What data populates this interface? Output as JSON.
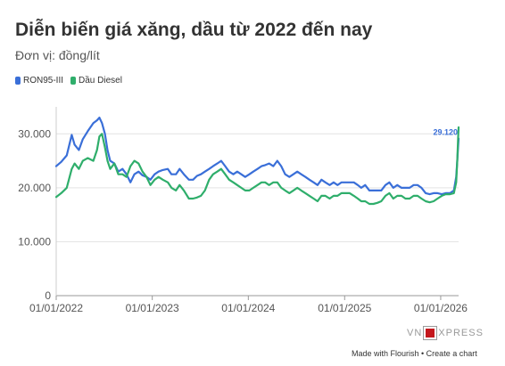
{
  "chart_data": {
    "type": "line",
    "title": "Diễn biến giá xăng, dầu từ 2022 đến nay",
    "subtitle": "Đơn vị: đồng/lít",
    "x_tick_labels": [
      "01/01/2022",
      "01/01/2023",
      "01/01/2024",
      "01/01/2025",
      "01/01/2026"
    ],
    "y_tick_labels": [
      "0",
      "10.000",
      "20.000",
      "30.000"
    ],
    "ylim": [
      0,
      35000
    ],
    "xlim": [
      "2022-01-01",
      "2026-03-10"
    ],
    "grid": "horizontal",
    "legend_position": "top-left",
    "annotation": "29.120",
    "series": [
      {
        "name": "RON95-III",
        "color": "#3a6fd8",
        "points": [
          [
            "2022-01-01",
            24000
          ],
          [
            "2022-01-20",
            24800
          ],
          [
            "2022-02-10",
            26000
          ],
          [
            "2022-03-01",
            29800
          ],
          [
            "2022-03-12",
            28000
          ],
          [
            "2022-03-28",
            27000
          ],
          [
            "2022-04-12",
            29000
          ],
          [
            "2022-05-01",
            30500
          ],
          [
            "2022-05-22",
            32000
          ],
          [
            "2022-06-05",
            32500
          ],
          [
            "2022-06-14",
            33000
          ],
          [
            "2022-06-24",
            32000
          ],
          [
            "2022-07-05",
            30000
          ],
          [
            "2022-07-15",
            27000
          ],
          [
            "2022-07-25",
            25000
          ],
          [
            "2022-08-10",
            24500
          ],
          [
            "2022-08-25",
            23000
          ],
          [
            "2022-09-10",
            23500
          ],
          [
            "2022-09-25",
            22500
          ],
          [
            "2022-10-10",
            21000
          ],
          [
            "2022-10-25",
            22500
          ],
          [
            "2022-11-10",
            23000
          ],
          [
            "2022-11-25",
            22300
          ],
          [
            "2022-12-10",
            22000
          ],
          [
            "2022-12-25",
            21500
          ],
          [
            "2023-01-10",
            22500
          ],
          [
            "2023-01-25",
            23000
          ],
          [
            "2023-02-10",
            23300
          ],
          [
            "2023-03-01",
            23500
          ],
          [
            "2023-03-15",
            22500
          ],
          [
            "2023-04-01",
            22500
          ],
          [
            "2023-04-15",
            23500
          ],
          [
            "2023-05-01",
            22500
          ],
          [
            "2023-05-20",
            21500
          ],
          [
            "2023-06-05",
            21500
          ],
          [
            "2023-06-20",
            22200
          ],
          [
            "2023-07-05",
            22500
          ],
          [
            "2023-07-20",
            23000
          ],
          [
            "2023-08-05",
            23500
          ],
          [
            "2023-08-20",
            24000
          ],
          [
            "2023-09-05",
            24500
          ],
          [
            "2023-09-20",
            25000
          ],
          [
            "2023-10-05",
            24000
          ],
          [
            "2023-10-20",
            23000
          ],
          [
            "2023-11-05",
            22500
          ],
          [
            "2023-11-20",
            23000
          ],
          [
            "2023-12-05",
            22500
          ],
          [
            "2023-12-20",
            22000
          ],
          [
            "2024-01-05",
            22500
          ],
          [
            "2024-01-20",
            23000
          ],
          [
            "2024-02-05",
            23500
          ],
          [
            "2024-02-20",
            24000
          ],
          [
            "2024-03-05",
            24200
          ],
          [
            "2024-03-20",
            24500
          ],
          [
            "2024-04-05",
            24000
          ],
          [
            "2024-04-20",
            25000
          ],
          [
            "2024-05-05",
            24000
          ],
          [
            "2024-05-20",
            22500
          ],
          [
            "2024-06-05",
            22000
          ],
          [
            "2024-06-20",
            22500
          ],
          [
            "2024-07-05",
            23000
          ],
          [
            "2024-07-20",
            22500
          ],
          [
            "2024-08-05",
            22000
          ],
          [
            "2024-08-20",
            21500
          ],
          [
            "2024-09-05",
            21000
          ],
          [
            "2024-09-20",
            20500
          ],
          [
            "2024-10-05",
            21500
          ],
          [
            "2024-10-20",
            21000
          ],
          [
            "2024-11-05",
            20500
          ],
          [
            "2024-11-20",
            21000
          ],
          [
            "2024-12-05",
            20500
          ],
          [
            "2024-12-20",
            21000
          ],
          [
            "2025-01-05",
            21000
          ],
          [
            "2025-01-20",
            21000
          ],
          [
            "2025-02-05",
            21000
          ],
          [
            "2025-02-20",
            20500
          ],
          [
            "2025-03-05",
            20000
          ],
          [
            "2025-03-20",
            20500
          ],
          [
            "2025-04-05",
            19500
          ],
          [
            "2025-04-20",
            19500
          ],
          [
            "2025-05-05",
            19500
          ],
          [
            "2025-05-20",
            19500
          ],
          [
            "2025-06-05",
            20500
          ],
          [
            "2025-06-20",
            21000
          ],
          [
            "2025-07-05",
            20000
          ],
          [
            "2025-07-20",
            20500
          ],
          [
            "2025-08-05",
            20000
          ],
          [
            "2025-08-20",
            20000
          ],
          [
            "2025-09-05",
            20000
          ],
          [
            "2025-09-20",
            20500
          ],
          [
            "2025-10-05",
            20500
          ],
          [
            "2025-10-20",
            20000
          ],
          [
            "2025-11-05",
            19000
          ],
          [
            "2025-11-20",
            18800
          ],
          [
            "2025-12-05",
            19000
          ],
          [
            "2025-12-20",
            19000
          ],
          [
            "2026-01-05",
            18800
          ],
          [
            "2026-01-20",
            19000
          ],
          [
            "2026-02-05",
            19000
          ],
          [
            "2026-02-20",
            19500
          ],
          [
            "2026-03-01",
            22000
          ],
          [
            "2026-03-05",
            25000
          ],
          [
            "2026-03-08",
            27500
          ],
          [
            "2026-03-10",
            29120
          ]
        ]
      },
      {
        "name": "Dầu Diesel",
        "color": "#2fae6b",
        "points": [
          [
            "2022-01-01",
            18300
          ],
          [
            "2022-01-20",
            19000
          ],
          [
            "2022-02-10",
            20000
          ],
          [
            "2022-03-01",
            23500
          ],
          [
            "2022-03-12",
            24500
          ],
          [
            "2022-03-28",
            23500
          ],
          [
            "2022-04-12",
            25000
          ],
          [
            "2022-05-01",
            25500
          ],
          [
            "2022-05-22",
            25000
          ],
          [
            "2022-06-05",
            27000
          ],
          [
            "2022-06-14",
            29500
          ],
          [
            "2022-06-24",
            30000
          ],
          [
            "2022-07-05",
            27500
          ],
          [
            "2022-07-15",
            25000
          ],
          [
            "2022-07-25",
            23500
          ],
          [
            "2022-08-10",
            24500
          ],
          [
            "2022-08-25",
            22500
          ],
          [
            "2022-09-10",
            22500
          ],
          [
            "2022-09-25",
            22000
          ],
          [
            "2022-10-10",
            24000
          ],
          [
            "2022-10-25",
            25000
          ],
          [
            "2022-11-10",
            24500
          ],
          [
            "2022-11-25",
            23000
          ],
          [
            "2022-12-10",
            22000
          ],
          [
            "2022-12-25",
            20500
          ],
          [
            "2023-01-10",
            21500
          ],
          [
            "2023-01-25",
            22000
          ],
          [
            "2023-02-10",
            21500
          ],
          [
            "2023-03-01",
            21000
          ],
          [
            "2023-03-15",
            20000
          ],
          [
            "2023-04-01",
            19500
          ],
          [
            "2023-04-15",
            20500
          ],
          [
            "2023-05-01",
            19500
          ],
          [
            "2023-05-20",
            18000
          ],
          [
            "2023-06-05",
            18000
          ],
          [
            "2023-06-20",
            18200
          ],
          [
            "2023-07-05",
            18500
          ],
          [
            "2023-07-20",
            19500
          ],
          [
            "2023-08-05",
            21500
          ],
          [
            "2023-08-20",
            22500
          ],
          [
            "2023-09-05",
            23000
          ],
          [
            "2023-09-20",
            23500
          ],
          [
            "2023-10-05",
            22500
          ],
          [
            "2023-10-20",
            21500
          ],
          [
            "2023-11-05",
            21000
          ],
          [
            "2023-11-20",
            20500
          ],
          [
            "2023-12-05",
            20000
          ],
          [
            "2023-12-20",
            19500
          ],
          [
            "2024-01-05",
            19500
          ],
          [
            "2024-01-20",
            20000
          ],
          [
            "2024-02-05",
            20500
          ],
          [
            "2024-02-20",
            21000
          ],
          [
            "2024-03-05",
            21000
          ],
          [
            "2024-03-20",
            20500
          ],
          [
            "2024-04-05",
            21000
          ],
          [
            "2024-04-20",
            21000
          ],
          [
            "2024-05-05",
            20000
          ],
          [
            "2024-05-20",
            19500
          ],
          [
            "2024-06-05",
            19000
          ],
          [
            "2024-06-20",
            19500
          ],
          [
            "2024-07-05",
            20000
          ],
          [
            "2024-07-20",
            19500
          ],
          [
            "2024-08-05",
            19000
          ],
          [
            "2024-08-20",
            18500
          ],
          [
            "2024-09-05",
            18000
          ],
          [
            "2024-09-20",
            17500
          ],
          [
            "2024-10-05",
            18500
          ],
          [
            "2024-10-20",
            18500
          ],
          [
            "2024-11-05",
            18000
          ],
          [
            "2024-11-20",
            18500
          ],
          [
            "2024-12-05",
            18500
          ],
          [
            "2024-12-20",
            19000
          ],
          [
            "2025-01-05",
            19000
          ],
          [
            "2025-01-20",
            19000
          ],
          [
            "2025-02-05",
            18500
          ],
          [
            "2025-02-20",
            18000
          ],
          [
            "2025-03-05",
            17500
          ],
          [
            "2025-03-20",
            17500
          ],
          [
            "2025-04-05",
            17000
          ],
          [
            "2025-04-20",
            17000
          ],
          [
            "2025-05-05",
            17200
          ],
          [
            "2025-05-20",
            17500
          ],
          [
            "2025-06-05",
            18500
          ],
          [
            "2025-06-20",
            19000
          ],
          [
            "2025-07-05",
            18000
          ],
          [
            "2025-07-20",
            18500
          ],
          [
            "2025-08-05",
            18500
          ],
          [
            "2025-08-20",
            18000
          ],
          [
            "2025-09-05",
            18000
          ],
          [
            "2025-09-20",
            18500
          ],
          [
            "2025-10-05",
            18500
          ],
          [
            "2025-10-20",
            18000
          ],
          [
            "2025-11-05",
            17500
          ],
          [
            "2025-11-20",
            17300
          ],
          [
            "2025-12-05",
            17500
          ],
          [
            "2025-12-20",
            18000
          ],
          [
            "2026-01-05",
            18500
          ],
          [
            "2026-01-20",
            18800
          ],
          [
            "2026-02-05",
            18800
          ],
          [
            "2026-02-20",
            19000
          ],
          [
            "2026-03-01",
            21000
          ],
          [
            "2026-03-05",
            25000
          ],
          [
            "2026-03-08",
            29000
          ],
          [
            "2026-03-10",
            31200
          ]
        ]
      }
    ]
  },
  "footer": "Made with Flourish • Create a chart",
  "logo_text": "VNEXPRESS"
}
